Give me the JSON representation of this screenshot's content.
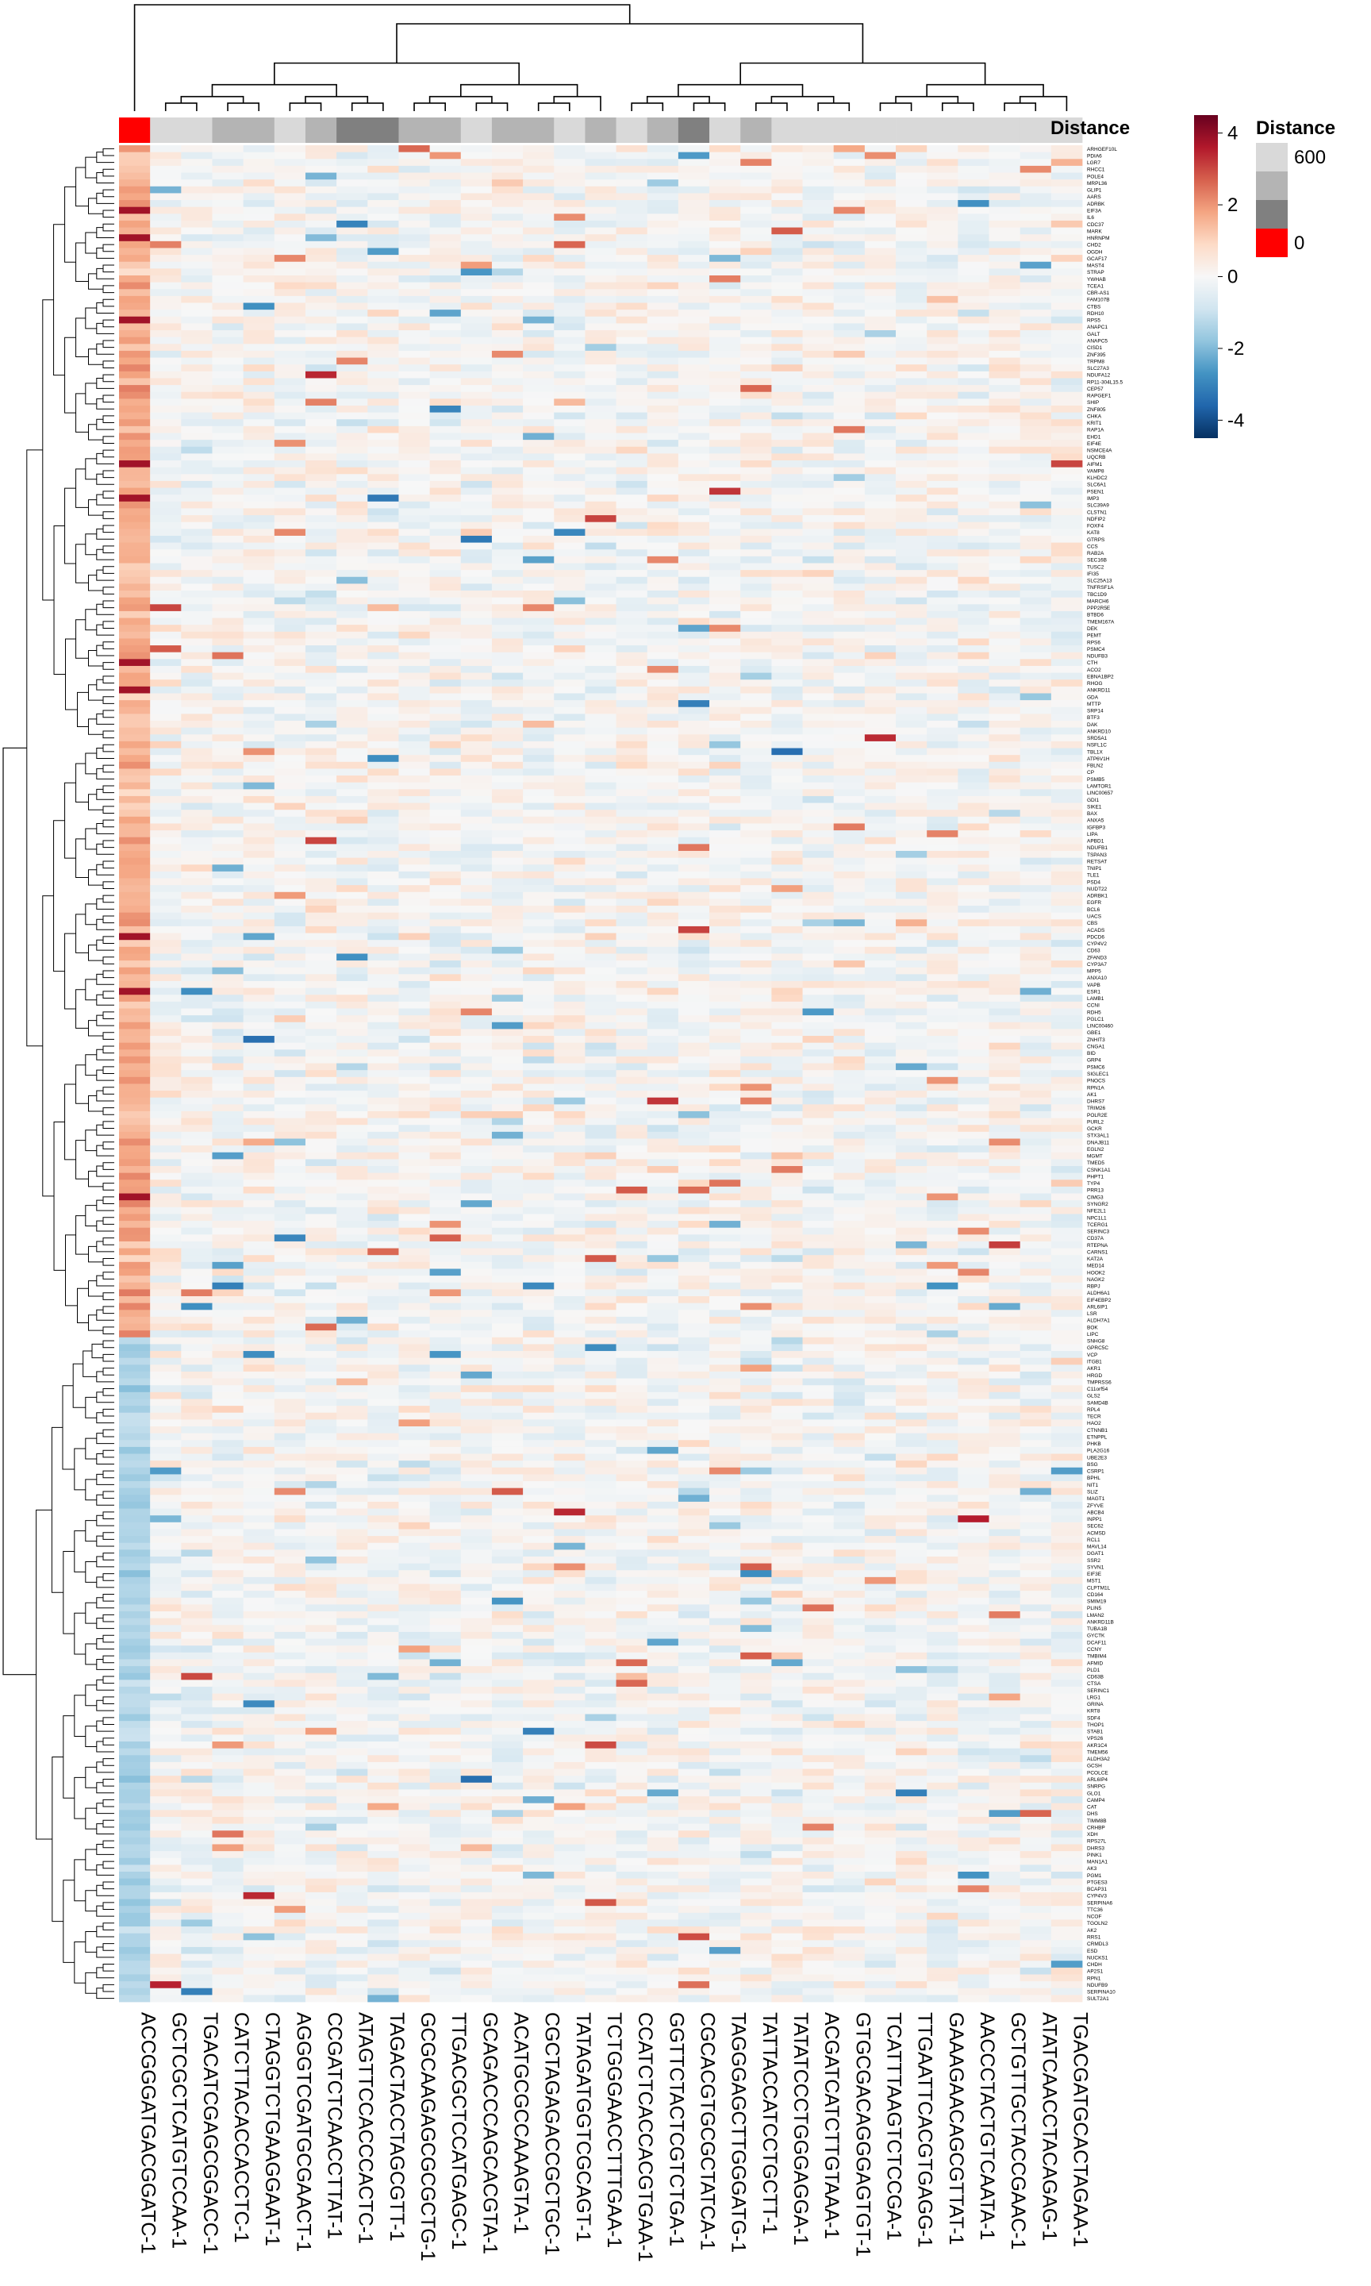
{
  "chart_data": {
    "type": "heatmap",
    "title": "",
    "annotation": {
      "name": "Distance",
      "values": [
        0,
        640,
        640,
        560,
        600,
        640,
        560,
        520,
        520,
        600,
        580,
        620,
        600,
        560,
        640,
        600,
        640,
        580,
        540,
        620,
        560,
        620,
        620,
        640,
        640,
        640,
        620,
        620,
        620,
        640,
        640
      ],
      "legend_title": "Distance",
      "legend_labels": [
        "600",
        "0"
      ],
      "colors": {
        "zero": "#ff0000",
        "dark": "#808080",
        "mid": "#b4b4b4",
        "light": "#d9d9d9"
      }
    },
    "color_scale": {
      "ticks": [
        "4",
        "2",
        "0",
        "-2",
        "-4"
      ],
      "range": [
        -4.5,
        4.5
      ],
      "colors": [
        "#053061",
        "#2166ac",
        "#4393c3",
        "#92c5de",
        "#d1e5f0",
        "#f7f7f7",
        "#fddbc7",
        "#f4a582",
        "#d6604d",
        "#b2182b",
        "#67001f"
      ]
    },
    "columns": [
      "ACCGGGATGACGGATC-1",
      "GCTCGCTCATGTCCAA-1",
      "TGACATCGAGCGGACC-1",
      "CATCTTACACCACCTC-1",
      "CTAGGTCTGAAGGAAT-1",
      "AGGGTCGATGCGAACT-1",
      "CCGATCTCAACCTTAT-1",
      "ATAGTTCCACCCACTC-1",
      "TAGACTACCTAGCGTT-1",
      "GCGCAAGAGCGCGCTG-1",
      "TTGACGCTCCATGAGC-1",
      "GCAGACCCAGCACGTA-1",
      "ACATGCGCCAAAGTA-1",
      "CGCTAGAGACCGCTGC-1",
      "TATAGATGGTCGCAGT-1",
      "TCTGGGAACCTTTGAA-1",
      "CCATCTCACCACGTGAA-1",
      "GGTTCTACTCGTCTGA-1",
      "CGCACGTGCGCTATCA-1",
      "TAGGGAGCTTGGGATG-1",
      "TATTACCATCCTGCTT-1",
      "TATATCCCTGGGAGGA-1",
      "ACGATCATCTTGTAAA-1",
      "GTGCGACAGGGAGTGT-1",
      "TCATTTAAGTCTCCGA-1",
      "TTGAATTCACGTGAGG-1",
      "GAAAGAACAGCGTTAT-1",
      "AACCCTACTGTCAATA-1",
      "GCTGTTGCTACCGAAC-1",
      "ATATCAACCTACAGAG-1",
      "TGACGATGCACTAGAA-1"
    ],
    "rows": [
      "ARHGEF10L",
      "PDIA6",
      "LGR7",
      "RHCC1",
      "POLE4",
      "MRPL36",
      "GLIP1",
      "AARS",
      "ADRBK",
      "EIF3A",
      "IL6",
      "CDC37",
      "MARK",
      "HNRNPM",
      "CHD2",
      "OGDH",
      "GCAF17",
      "MAST4",
      "STRAP",
      "YWHAB",
      "TCEA1",
      "CBR-AS1",
      "FAM107B",
      "CTBS",
      "RDH10",
      "RPS5",
      "ANAPC1",
      "GALT",
      "ANAPC5",
      "CISD1",
      "ZNF395",
      "TRPM8",
      "SLC27A3",
      "NDUFA12",
      "RP11-304L15.5",
      "CEP57",
      "RAPGEF1",
      "SHIP",
      "ZNF805",
      "CHKA",
      "KRIT1",
      "RAP1A",
      "EHD1",
      "EIF4E",
      "NSMCE4A",
      "UQCRB",
      "AIFM1",
      "VAMP8",
      "KLHDC2",
      "SLC6A1",
      "PSEN1",
      "IMP3",
      "SLC39A9",
      "CLSTN1",
      "NDFIP2",
      "FOXF4",
      "KAT8",
      "GTRPS",
      "CCS",
      "RAB2A",
      "SEC16B",
      "TUSC2",
      "IFI35",
      "SLC25A13",
      "TNFRSF1A",
      "TBC1D9",
      "MARCH6",
      "PPP2R5E",
      "BTBD6",
      "TMEM167A",
      "DEK",
      "PEMT",
      "RPS6",
      "PSMC4",
      "NDUFB3",
      "CTH",
      "ACO2",
      "EBNA1BP2",
      "RHOG",
      "ANKRD11",
      "GDA",
      "MTTP",
      "SRP14",
      "BTF3",
      "DAK",
      "ANKRD10",
      "SRD5A1",
      "NSFL1C",
      "TBL1X",
      "ATP6V1H",
      "FBLN2",
      "CP",
      "PSMB5",
      "LAMTOR1",
      "LINC00657",
      "GDI1",
      "SIKE1",
      "BAX",
      "ANXA5",
      "IGFBP3",
      "LIPA",
      "APBD1",
      "NDUFB1",
      "TSPAN3",
      "RETSAT",
      "TNIP1",
      "TLE1",
      "PSD4",
      "NUDT22",
      "ADRBK1",
      "EGFR",
      "BCL6",
      "UACS",
      "CBS",
      "ACADS",
      "PDCD6",
      "CYP4V2",
      "CD63",
      "ZFAND3",
      "CYP3A7",
      "MPP5",
      "ANXA10",
      "VAPB",
      "ESR1",
      "LAMB1",
      "CCNI",
      "RDH5",
      "PGLC1",
      "LINC00460",
      "GBE1",
      "ZNHIT3",
      "CNGA1",
      "BID",
      "GRP4",
      "PSMC6",
      "SIGLEC1",
      "PNOCS",
      "RPN1A",
      "AK1",
      "DHRS7",
      "TRIM26",
      "POLR2E",
      "PURL2",
      "GCKR",
      "STX3AL1",
      "DNAJB11",
      "EGLN2",
      "MGMT",
      "TMED5",
      "CSNK1A1",
      "PHPT1",
      "TYP4",
      "PRR13",
      "CIMG3",
      "SYNGR2",
      "NFE2L1",
      "NPC1L1",
      "TCERG1",
      "SERINC3",
      "CD37A",
      "RTEPNA",
      "CARNS1",
      "KAT2A",
      "MED14",
      "HOOK2",
      "NAGK2",
      "RBPJ",
      "ALDH6A1",
      "EIF4EBP2",
      "ARL6IP1",
      "LSR",
      "ALDH7A1",
      "BOK",
      "LIPC",
      "SNHG8",
      "GPRC5C",
      "VCP",
      "ITGB1",
      "AKR1",
      "HRGD",
      "TMPRSS6",
      "C11orf54",
      "GLS2",
      "SAMD4B",
      "RPL4",
      "TECR",
      "HAO2",
      "CTNNB1",
      "ETNPPL",
      "PHKB",
      "PLA2G16",
      "UBE2E3",
      "BSG",
      "CSRP1",
      "BPHL",
      "NIT1",
      "SLIZ",
      "MAGT1",
      "ZFYVE",
      "ABCB4",
      "INPP1",
      "SEC62",
      "ACMSD",
      "RCL1",
      "MAVL14",
      "DGAT1",
      "SSR2",
      "SYVN1",
      "EIF3E",
      "MST1",
      "CLPTM1L",
      "CD164",
      "SMIM19",
      "PLIN5",
      "LMAN2",
      "ANKRD11B",
      "TUBA1B",
      "GYCTK",
      "DCAF11",
      "CCNY",
      "TMBIM4",
      "AFMID",
      "PLD1",
      "CD63B",
      "CTSA",
      "SERINC1",
      "LRG1",
      "GRINA",
      "KRT8",
      "SDF4",
      "THOP1",
      "STAB1",
      "VPS26",
      "AKR1C4",
      "TMEM56",
      "ALDH3A2",
      "GCSH",
      "PCOLCE",
      "ARL6IP4",
      "SNRPG",
      "GLO1",
      "CAMP4",
      "CAT",
      "DHS",
      "TIMM8B",
      "CRHBP",
      "XDH",
      "RPS27L",
      "DHRS3",
      "PINK1",
      "MAN1A1",
      "AK3",
      "PGM1",
      "PTGES3",
      "BCAP31",
      "CYP4V3",
      "SERPINA6",
      "TTC36",
      "NCOF",
      "TGOLN2",
      "AK2",
      "RRS1",
      "CRMDL3",
      "ESD",
      "NUCKS1",
      "CHDH",
      "AP2S1",
      "RPN1",
      "NDUFB9",
      "SERPINA10",
      "SULT2A1"
    ],
    "row_split": 174,
    "seed": 20240611,
    "ylabel": "",
    "xlabel": ""
  }
}
